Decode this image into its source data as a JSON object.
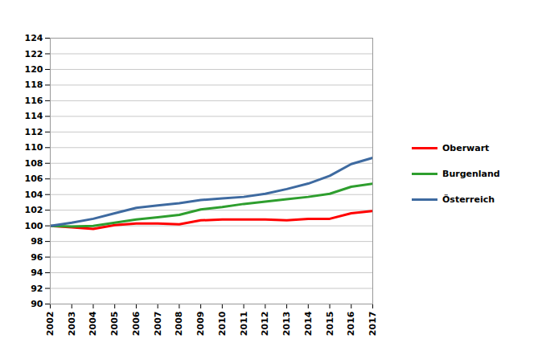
{
  "chart_data": {
    "type": "line",
    "x": [
      2002,
      2003,
      2004,
      2005,
      2006,
      2007,
      2008,
      2009,
      2010,
      2011,
      2012,
      2013,
      2014,
      2015,
      2016,
      2017
    ],
    "series": [
      {
        "name": "Oberwart",
        "color": "#ff0000",
        "values": [
          100,
          99.8,
          99.6,
          100.1,
          100.3,
          100.3,
          100.2,
          100.7,
          100.8,
          100.8,
          100.8,
          100.7,
          100.9,
          100.9,
          101.6,
          101.9
        ]
      },
      {
        "name": "Burgenland",
        "color": "#2e9e2e",
        "values": [
          100,
          99.9,
          100.0,
          100.4,
          100.8,
          101.1,
          101.4,
          102.1,
          102.4,
          102.8,
          103.1,
          103.4,
          103.7,
          104.1,
          105.0,
          105.4
        ]
      },
      {
        "name": "Österreich",
        "color": "#3e6aa0",
        "values": [
          100,
          100.4,
          100.9,
          101.6,
          102.3,
          102.6,
          102.9,
          103.3,
          103.5,
          103.7,
          104.1,
          104.7,
          105.4,
          106.4,
          107.9,
          108.7
        ]
      }
    ],
    "xlim": [
      2002,
      2017
    ],
    "xticks": [
      2002,
      2003,
      2004,
      2005,
      2006,
      2007,
      2008,
      2009,
      2010,
      2011,
      2012,
      2013,
      2014,
      2015,
      2016,
      2017
    ],
    "ylim": [
      90,
      124
    ],
    "yticks": [
      90,
      92,
      94,
      96,
      98,
      100,
      102,
      104,
      106,
      108,
      110,
      112,
      114,
      116,
      118,
      120,
      122,
      124
    ],
    "grid": true,
    "legend": "right"
  }
}
